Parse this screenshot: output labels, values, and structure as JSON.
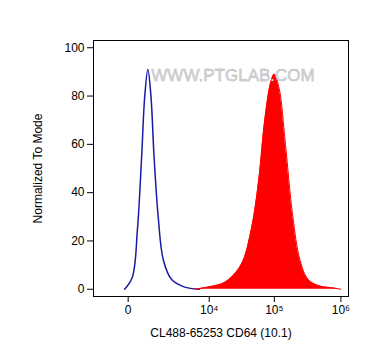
{
  "chart_data": {
    "type": "line",
    "xlabel": "CL488-65253 CD64 (10.1)",
    "ylabel": "Normalized To Mode",
    "annotations": [
      "WWW.PTGLAB.COM"
    ],
    "log": "x",
    "xlim": [
      -1500,
      1300000
    ],
    "xticks": [
      0,
      {
        "value": 10000,
        "label": "10⁴"
      },
      {
        "value": 100000,
        "label": "10⁵"
      },
      {
        "value": 1000000,
        "label": "10⁶"
      }
    ],
    "ylim": [
      -3,
      103
    ],
    "yticks": [
      0,
      20,
      40,
      60,
      80,
      100
    ],
    "grid": false,
    "series": [
      {
        "type": "line",
        "color": "#1a1aa6",
        "x": [
          -87,
          100,
          246,
          385,
          502,
          633,
          776,
          937,
          1181,
          1541,
          2263,
          3817,
          6960
        ],
        "values": [
          0,
          5,
          25,
          55,
          80,
          91,
          80,
          55,
          30,
          12,
          4,
          1,
          0
        ]
      },
      {
        "type": "area",
        "color": "#ff0000",
        "x": [
          5765,
          10000,
          18000,
          31200,
          45000,
          58000,
          71700,
          89000,
          100000,
          118600,
          147000,
          190000,
          244000,
          323000,
          463000,
          788000,
          1000000
        ],
        "values": [
          0,
          1,
          3,
          10,
          25,
          45,
          70,
          86,
          89,
          83,
          60,
          30,
          12,
          4,
          1.5,
          0.5,
          0
        ]
      }
    ]
  }
}
